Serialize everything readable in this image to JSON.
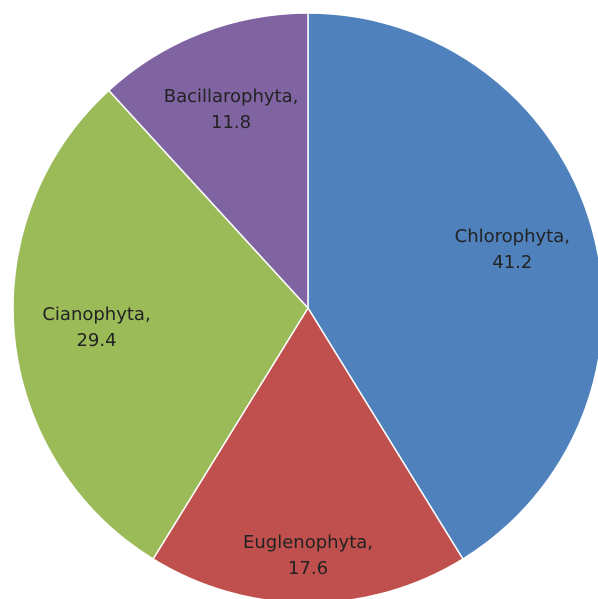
{
  "chart_data": {
    "type": "pie",
    "values": [
      41.2,
      17.6,
      29.4,
      11.8
    ],
    "value_labels": [
      "Chlorophyta, 41.2",
      "Euglenophyta, 17.6",
      "Cianophyta, 29.4",
      "Bacillarophyta, 11.8"
    ],
    "colors": [
      "#4f81bd",
      "#c0504d",
      "#9bbb59",
      "#8064a2"
    ]
  }
}
